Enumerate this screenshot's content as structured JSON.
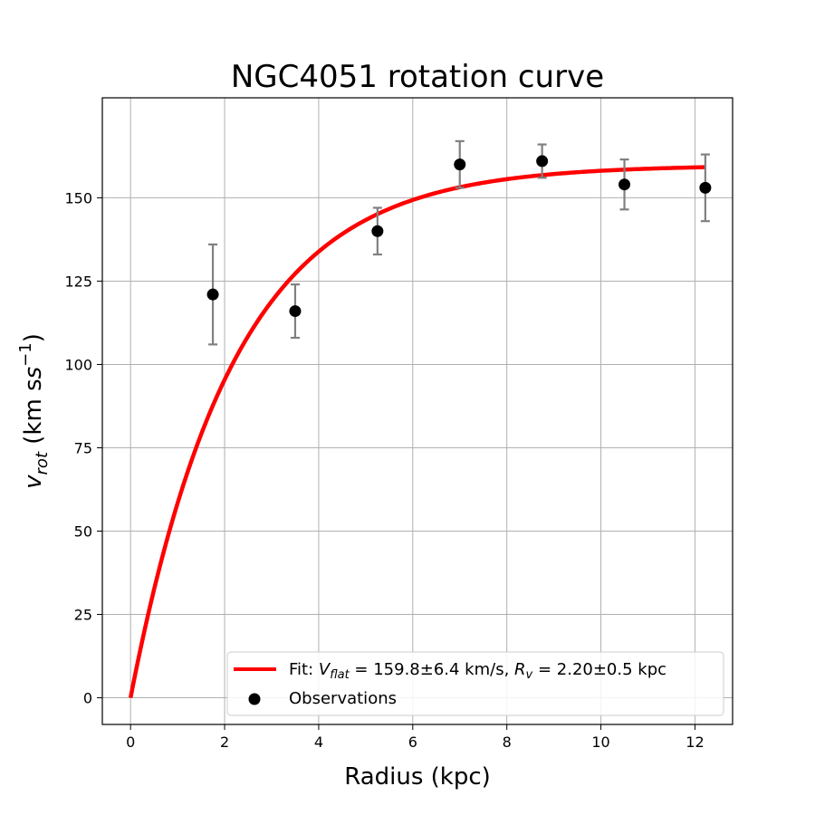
{
  "chart_data": {
    "type": "scatter",
    "title": "NGC4051 rotation curve",
    "xlabel": "Radius (kpc)",
    "ylabel_main": "v",
    "ylabel_sub": "rot",
    "ylabel_units": " (km s",
    "ylabel_sup": "−1",
    "ylabel_close": ")",
    "xlim": [
      -0.6,
      12.8
    ],
    "ylim": [
      -8,
      180
    ],
    "xticks": [
      0,
      2,
      4,
      6,
      8,
      10,
      12
    ],
    "yticks": [
      0,
      25,
      50,
      75,
      100,
      125,
      150
    ],
    "grid": true,
    "legend_position": "lower-right",
    "series": [
      {
        "name": "Observations",
        "kind": "scatter",
        "color": "#000000",
        "errorbar_color": "#808080",
        "x": [
          1.75,
          3.5,
          5.25,
          7.0,
          8.75,
          10.5,
          12.22
        ],
        "y": [
          121,
          116,
          140,
          160,
          161,
          154,
          153
        ],
        "yerr": [
          15,
          8,
          7,
          7,
          5,
          7.5,
          10
        ]
      },
      {
        "name": "Fit",
        "kind": "line",
        "color": "#ff0000",
        "model": "exponential",
        "V_flat": 159.8,
        "R_v": 2.2,
        "x_range": [
          0,
          12.22
        ]
      }
    ],
    "legend": {
      "fit_prefix": "Fit: ",
      "vflat_symbol": "V",
      "vflat_sub": "flat",
      "vflat_text": " = 159.8±6.4 km/s, ",
      "rv_symbol": "R",
      "rv_sub": "v",
      "rv_text": " = 2.20±0.5 kpc",
      "obs_label": "Observations"
    }
  }
}
